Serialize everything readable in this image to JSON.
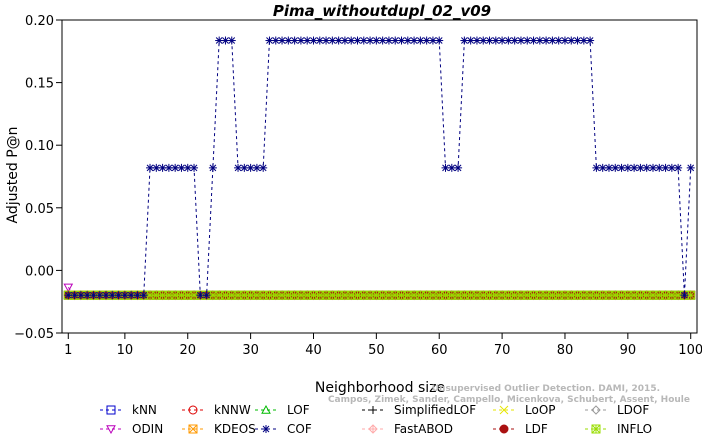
{
  "chart_data": {
    "type": "line",
    "title": "Pima_withoutdupl_02_v09",
    "xlabel": "Neighborhood size",
    "ylabel": "Adjusted P@n",
    "xlim": [
      0,
      101
    ],
    "ylim": [
      -0.05,
      0.2
    ],
    "x_ticks": [
      1,
      10,
      20,
      30,
      40,
      50,
      60,
      70,
      80,
      90,
      100
    ],
    "y_ticks": [
      -0.05,
      0.0,
      0.05,
      0.1,
      0.15,
      0.2
    ],
    "y_tick_labels": [
      "−0.05",
      "0.00",
      "0.05",
      "0.10",
      "0.15",
      "0.20"
    ],
    "legend_position": "bottom",
    "watermark": [
      "Unsupervised Outlier Detection. DAMI, 2015.",
      "Campos, Zimek, Sander, Campello, Micenkova, Schubert, Assent, Houle"
    ],
    "series": [
      {
        "name": "kNN",
        "color": "#0000cc",
        "marker": "square",
        "constant": -0.0198
      },
      {
        "name": "kNNW",
        "color": "#dd0000",
        "marker": "circle",
        "constant": -0.0198
      },
      {
        "name": "LOF",
        "color": "#00bb00",
        "marker": "triangle",
        "constant": -0.0198
      },
      {
        "name": "SimplifiedLOF",
        "color": "#000000",
        "marker": "plus",
        "constant": -0.0198
      },
      {
        "name": "LoOP",
        "color": "#e6e600",
        "marker": "x",
        "constant": -0.0198
      },
      {
        "name": "LDOF",
        "color": "#999999",
        "marker": "diamond",
        "constant": -0.0198
      },
      {
        "name": "ODIN",
        "color": "#bb00bb",
        "marker": "triangle-down",
        "constant": -0.0198,
        "first": -0.0135
      },
      {
        "name": "KDEOS",
        "color": "#ff9900",
        "marker": "boxed-x",
        "constant": -0.0198
      },
      {
        "name": "COF",
        "color": "#000080",
        "marker": "asterisk",
        "segments": [
          [
            1,
            13,
            -0.0198
          ],
          [
            14,
            21,
            0.0819
          ],
          [
            22,
            23,
            -0.0198
          ],
          [
            24,
            24,
            0.0819
          ],
          [
            25,
            27,
            0.1836
          ],
          [
            28,
            32,
            0.0819
          ],
          [
            33,
            60,
            0.1836
          ],
          [
            61,
            63,
            0.0819
          ],
          [
            64,
            84,
            0.1836
          ],
          [
            85,
            98,
            0.0819
          ],
          [
            99,
            99,
            -0.0198
          ],
          [
            100,
            100,
            0.0819
          ]
        ]
      },
      {
        "name": "FastABOD",
        "color": "#ffaaaa",
        "marker": "diamond-plus",
        "constant": -0.0198
      },
      {
        "name": "LDF",
        "color": "#aa1111",
        "marker": "circle-fill",
        "constant": -0.0198
      },
      {
        "name": "INFLO",
        "color": "#99dd00",
        "marker": "boxed-star",
        "constant": -0.0198
      }
    ]
  }
}
